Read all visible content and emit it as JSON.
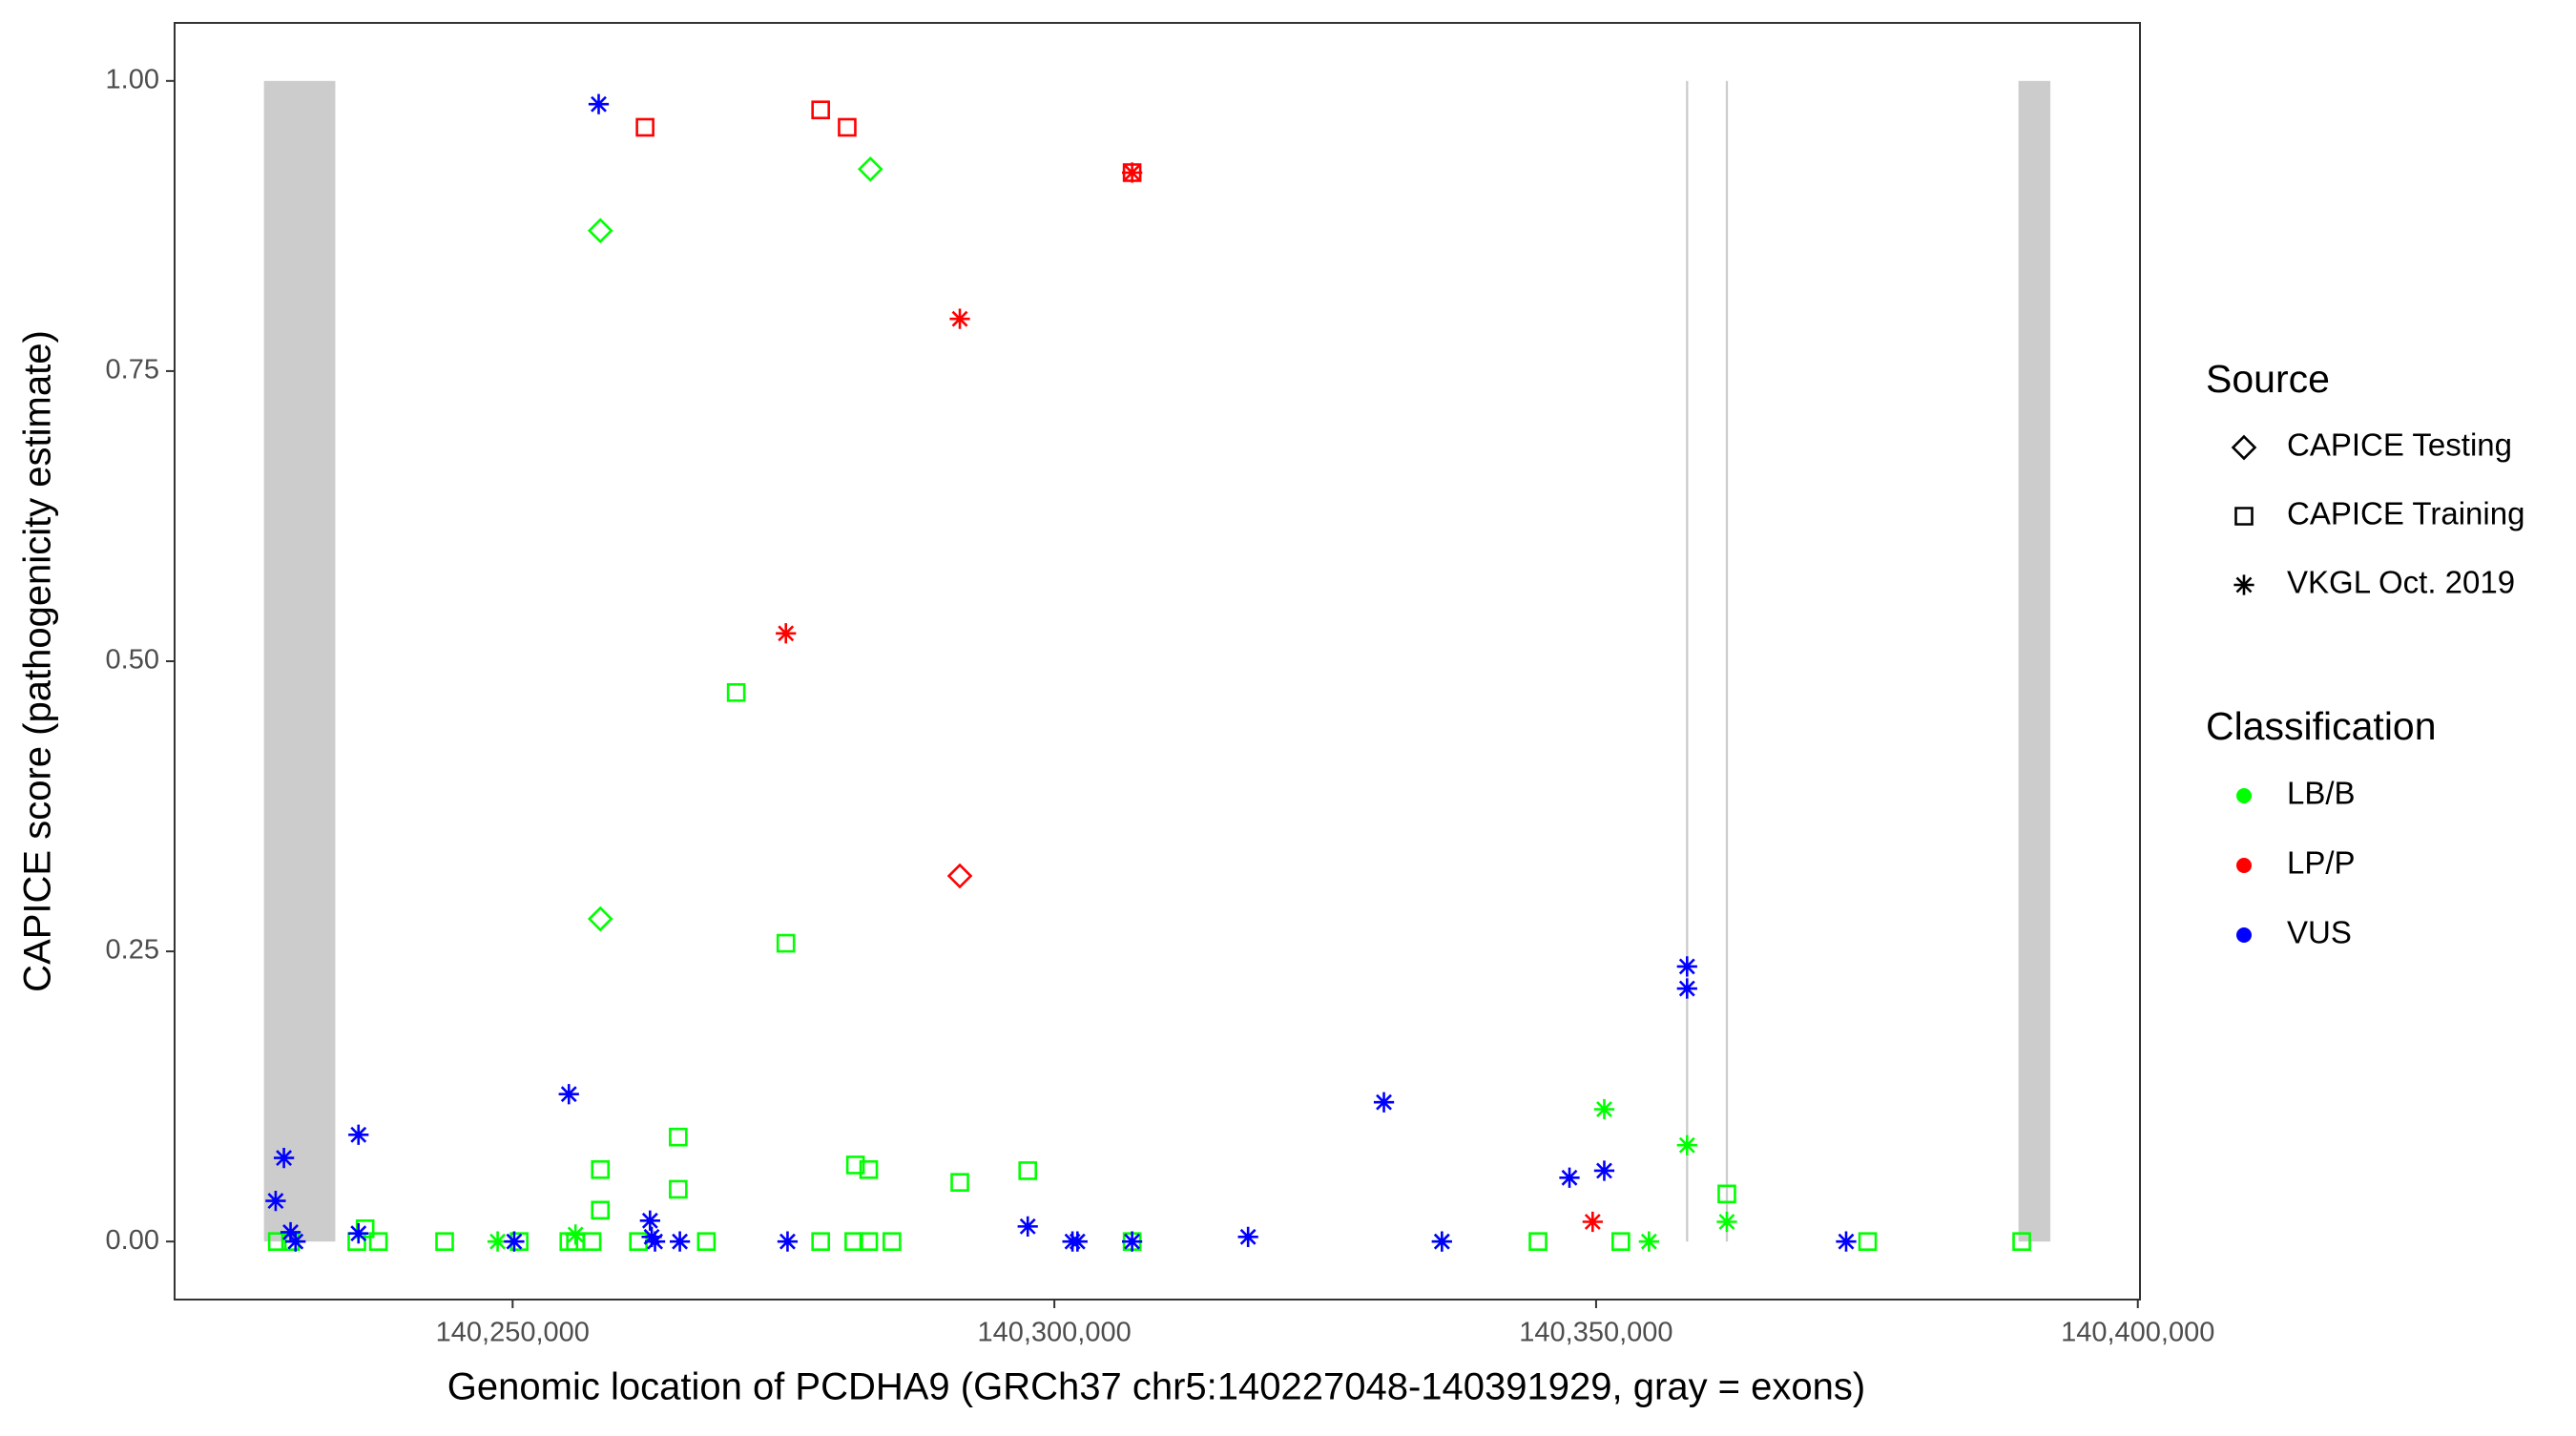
{
  "chart_data": {
    "type": "scatter",
    "x_label": "Genomic location of PCDHA9 (GRCh37 chr5:140227048-140391929, gray = exons)",
    "y_label": "CAPICE score (pathogenicity estimate)",
    "xlim": [
      140218800,
      140400200
    ],
    "ylim": [
      -0.05,
      1.05
    ],
    "xticks": [
      {
        "value": 140250000,
        "label": "140,250,000"
      },
      {
        "value": 140300000,
        "label": "140,300,000"
      },
      {
        "value": 140350000,
        "label": "140,350,000"
      },
      {
        "value": 140400000,
        "label": "140,400,000"
      }
    ],
    "yticks": [
      {
        "value": 0,
        "label": "0.00"
      },
      {
        "value": 0.25,
        "label": "0.25"
      },
      {
        "value": 0.5,
        "label": "0.50"
      },
      {
        "value": 0.75,
        "label": "0.75"
      },
      {
        "value": 1,
        "label": "1.00"
      }
    ],
    "grid": false,
    "exons": [
      [
        140227048,
        140233632
      ],
      [
        140358300,
        140358500
      ],
      [
        140361970,
        140362170
      ],
      [
        140388983,
        140391929
      ]
    ],
    "exon_color": "#cccccc",
    "legends": [
      {
        "title": "Source",
        "items": [
          "CAPICE Testing",
          "CAPICE Training",
          "VKGL Oct. 2019"
        ],
        "shapes": [
          "diamond",
          "square",
          "asterisk"
        ]
      },
      {
        "title": "Classification",
        "items": [
          "LB/B",
          "LP/P",
          "VUS"
        ],
        "colors": [
          "#00ff00",
          "#ff0000",
          "#0000ff"
        ]
      }
    ],
    "series": [
      {
        "source": "CAPICE Training",
        "classification": "LB/B",
        "x": [
          140228280,
          140229503,
          140235619,
          140236384,
          140237607,
          140243723,
          140250603,
          140255190,
          140255802,
          140257331,
          140258095,
          140258095,
          140261612,
          140265282,
          140265282,
          140267881,
          140270633,
          140275220,
          140278431,
          140281489,
          140281642,
          140282865,
          140282865,
          140285006,
          140291275,
          140297544,
          140307176,
          140344637,
          140352282,
          140362068,
          140375064,
          140389284
        ],
        "values": [
          0,
          0,
          0,
          0.011,
          0,
          0,
          0,
          0,
          0,
          0,
          0.027,
          0.062,
          0,
          0.09,
          0.045,
          0,
          0.473,
          0.257,
          0,
          0,
          0.066,
          0.062,
          0,
          0,
          0.051,
          0.061,
          0,
          0,
          0,
          0.041,
          0,
          0
        ]
      },
      {
        "source": "CAPICE Testing",
        "classification": "LB/B",
        "x": [
          140258095,
          140283018,
          140258095
        ],
        "values": [
          0.871,
          0.924,
          0.278
        ]
      },
      {
        "source": "VKGL Oct. 2019",
        "classification": "LB/B",
        "x": [
          140248616,
          140255802,
          140335769,
          140350753,
          140354881,
          140358398,
          140362068
        ],
        "values": [
          0,
          0.006,
          0,
          0.114,
          0,
          0.083,
          0.017
        ]
      },
      {
        "source": "CAPICE Training",
        "classification": "LP/P",
        "x": [
          140262224,
          140278431,
          140280877,
          140307176
        ],
        "values": [
          0.96,
          0.975,
          0.96,
          0.921
        ]
      },
      {
        "source": "CAPICE Testing",
        "classification": "LP/P",
        "x": [
          140291275
        ],
        "values": [
          0.315
        ]
      },
      {
        "source": "VKGL Oct. 2019",
        "classification": "LP/P",
        "x": [
          140275220,
          140291275,
          140307176,
          140349682
        ],
        "values": [
          0.524,
          0.795,
          0.921,
          0.017
        ]
      },
      {
        "source": "VKGL Oct. 2019",
        "classification": "VUS",
        "x": [
          140228127,
          140228891,
          140229503,
          140229962,
          140235772,
          140235772,
          140250145,
          140255190,
          140257942,
          140262682,
          140262835,
          140263141,
          140265435,
          140275373,
          140297544,
          140301672,
          140302131,
          140307176,
          140317879,
          140330417,
          140335769,
          140347542,
          140350753,
          140358398,
          140358398,
          140373077
        ],
        "values": [
          0.035,
          0.072,
          0.008,
          0,
          0.092,
          0.007,
          0,
          0.127,
          0.98,
          0.018,
          0.004,
          0,
          0,
          0,
          0.013,
          0,
          0,
          0,
          0.004,
          0.12,
          0,
          0.055,
          0.061,
          0.237,
          0.218,
          0
        ]
      }
    ]
  }
}
